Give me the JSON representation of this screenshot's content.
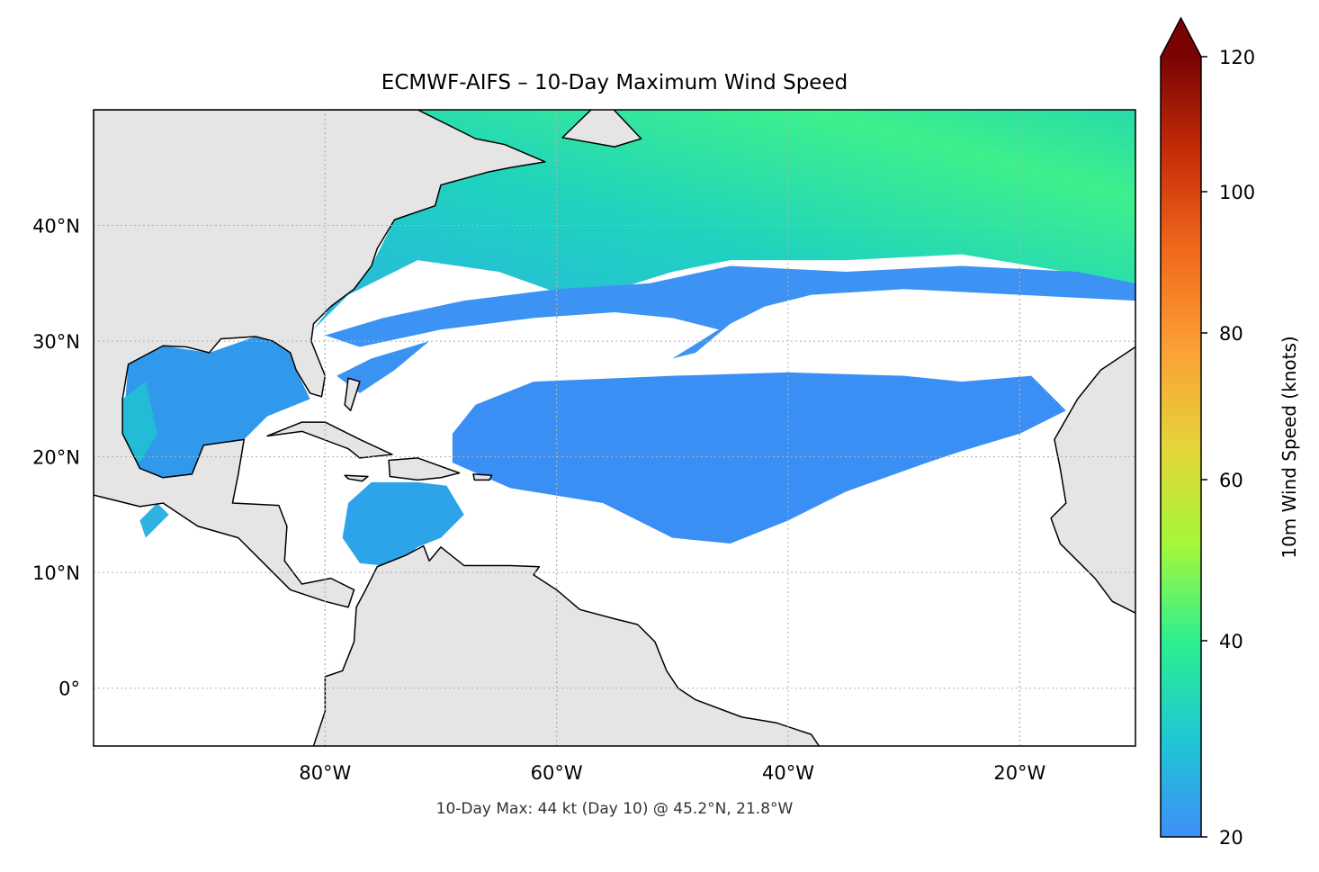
{
  "chart_data": {
    "type": "heatmap",
    "title": "ECMWF-AIFS – 10-Day Maximum Wind Speed",
    "subtitle": "10-Day Max: 44 kt (Day 10) @ 45.2°N, 21.8°W",
    "projection": "plate carree",
    "extent": {
      "lon": [
        -100,
        -10
      ],
      "lat": [
        -5,
        50
      ]
    },
    "grid": true,
    "x_ticks": [
      {
        "value": -80,
        "label": "80°W"
      },
      {
        "value": -60,
        "label": "60°W"
      },
      {
        "value": -40,
        "label": "40°W"
      },
      {
        "value": -20,
        "label": "20°W"
      }
    ],
    "y_ticks": [
      {
        "value": 40,
        "label": "40°N"
      },
      {
        "value": 30,
        "label": "30°N"
      },
      {
        "value": 20,
        "label": "20°N"
      },
      {
        "value": 10,
        "label": "10°N"
      },
      {
        "value": 0,
        "label": "0°"
      }
    ],
    "colorbar": {
      "label": "10m Wind Speed (knots)",
      "min": 20,
      "max": 120,
      "extend": "max",
      "ticks": [
        {
          "value": 20,
          "label": "20"
        },
        {
          "value": 40,
          "label": "40"
        },
        {
          "value": 60,
          "label": "60"
        },
        {
          "value": 80,
          "label": "80"
        },
        {
          "value": 100,
          "label": "100"
        },
        {
          "value": 120,
          "label": "120"
        }
      ],
      "colors": [
        "#3e8ff7",
        "#1fc7d4",
        "#2bf08f",
        "#a5f73a",
        "#e5d43a",
        "#fca035",
        "#f06a1c",
        "#c72e09",
        "#7a0403"
      ]
    },
    "max_point": {
      "value_kt": 44,
      "day": 10,
      "lat": 45.2,
      "lon": -21.8
    },
    "land_color": "#e5e5e5"
  }
}
